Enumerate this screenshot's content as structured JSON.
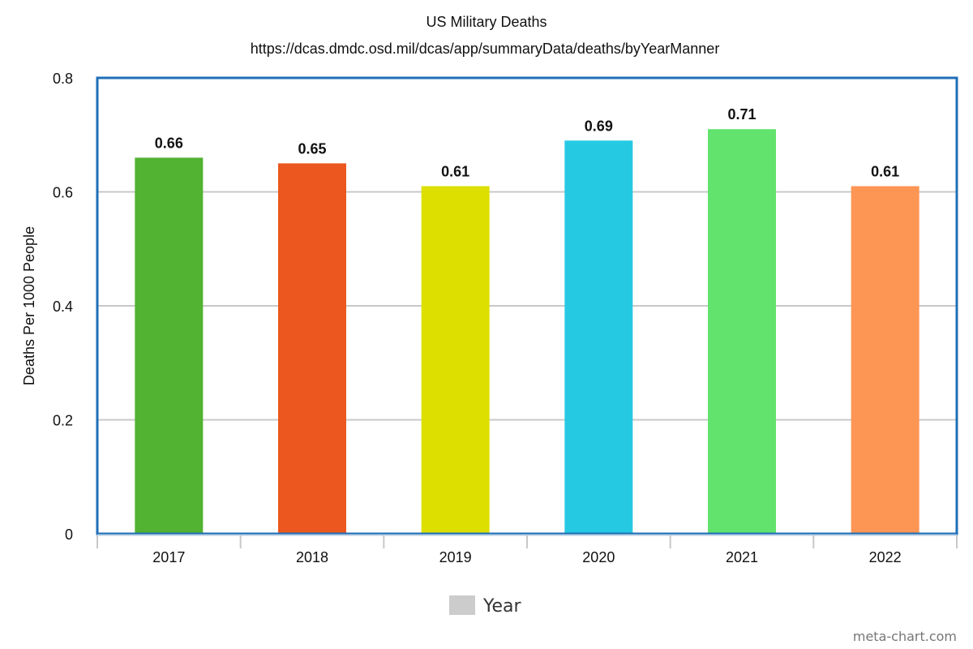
{
  "chart_data": {
    "type": "bar",
    "title": "US Military Deaths",
    "subtitle": "https://dcas.dmdc.osd.mil/dcas/app/summaryData/deaths/byYearManner",
    "xlabel": "",
    "ylabel": "Deaths Per 1000 People",
    "categories": [
      "2017",
      "2018",
      "2019",
      "2020",
      "2021",
      "2022"
    ],
    "values": [
      0.66,
      0.65,
      0.61,
      0.69,
      0.71,
      0.61
    ],
    "value_labels": [
      "0.66",
      "0.65",
      "0.61",
      "0.69",
      "0.71",
      "0.61"
    ],
    "bar_colors": [
      "#52b232",
      "#eb571e",
      "#dcdf00",
      "#26c9e2",
      "#62e36e",
      "#fd9555"
    ],
    "ylim": [
      0,
      0.8
    ],
    "yticks": [
      0,
      0.2,
      0.4,
      0.6,
      0.8
    ],
    "ytick_labels": [
      "0",
      "0.2",
      "0.4",
      "0.6",
      "0.8"
    ],
    "grid": true,
    "legend": {
      "label": "Year",
      "color": "#cccccc",
      "position": "bottom-center"
    },
    "plot_border_color": "#1f6fb7",
    "grid_color": "#c8c8c8"
  },
  "footer": {
    "credit": "meta-chart.com"
  }
}
